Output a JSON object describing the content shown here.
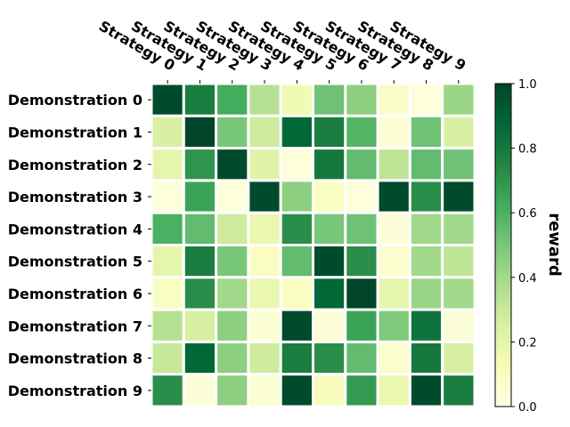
{
  "chart_data": {
    "type": "heatmap",
    "title": "",
    "x_categories": [
      "Strategy 0",
      "Strategy 1",
      "Strategy 2",
      "Strategy 3",
      "Strategy 4",
      "Strategy 5",
      "Strategy 6",
      "Strategy 7",
      "Strategy 8",
      "Strategy 9"
    ],
    "y_categories": [
      "Demonstration 0",
      "Demonstration 1",
      "Demonstration 2",
      "Demonstration 3",
      "Demonstration 4",
      "Demonstration 5",
      "Demonstration 6",
      "Demonstration 7",
      "Demonstration 8",
      "Demonstration 9"
    ],
    "values": [
      [
        0.98,
        0.78,
        0.62,
        0.35,
        0.15,
        0.52,
        0.45,
        0.08,
        0.03,
        0.42
      ],
      [
        0.25,
        1.0,
        0.5,
        0.28,
        0.88,
        0.78,
        0.58,
        0.05,
        0.52,
        0.25
      ],
      [
        0.2,
        0.7,
        0.98,
        0.22,
        0.03,
        0.8,
        0.55,
        0.32,
        0.55,
        0.52
      ],
      [
        0.03,
        0.65,
        0.03,
        0.98,
        0.45,
        0.1,
        0.03,
        0.98,
        0.72,
        0.98
      ],
      [
        0.6,
        0.55,
        0.28,
        0.18,
        0.72,
        0.5,
        0.52,
        0.04,
        0.4,
        0.4
      ],
      [
        0.2,
        0.78,
        0.5,
        0.1,
        0.55,
        0.98,
        0.72,
        0.07,
        0.4,
        0.32
      ],
      [
        0.1,
        0.72,
        0.4,
        0.18,
        0.1,
        0.88,
        1.0,
        0.2,
        0.42,
        0.4
      ],
      [
        0.35,
        0.25,
        0.45,
        0.06,
        0.98,
        0.04,
        0.65,
        0.48,
        0.82,
        0.04
      ],
      [
        0.3,
        0.88,
        0.45,
        0.28,
        0.78,
        0.72,
        0.55,
        0.07,
        0.8,
        0.25
      ],
      [
        0.72,
        0.04,
        0.45,
        0.06,
        0.98,
        0.12,
        0.68,
        0.18,
        0.98,
        0.78
      ]
    ],
    "colorbar": {
      "label": "reward",
      "range": [
        0.0,
        1.0
      ],
      "ticks": [
        "0.0",
        "0.2",
        "0.4",
        "0.6",
        "0.8",
        "1.0"
      ],
      "colormap": "YlGn",
      "colormap_stops": [
        "#ffffe5",
        "#f7fcb9",
        "#d9f0a3",
        "#addd8e",
        "#78c679",
        "#41ab5d",
        "#238443",
        "#006837",
        "#004529"
      ]
    },
    "grid": false,
    "cell_separator_color": "#ffffff"
  }
}
